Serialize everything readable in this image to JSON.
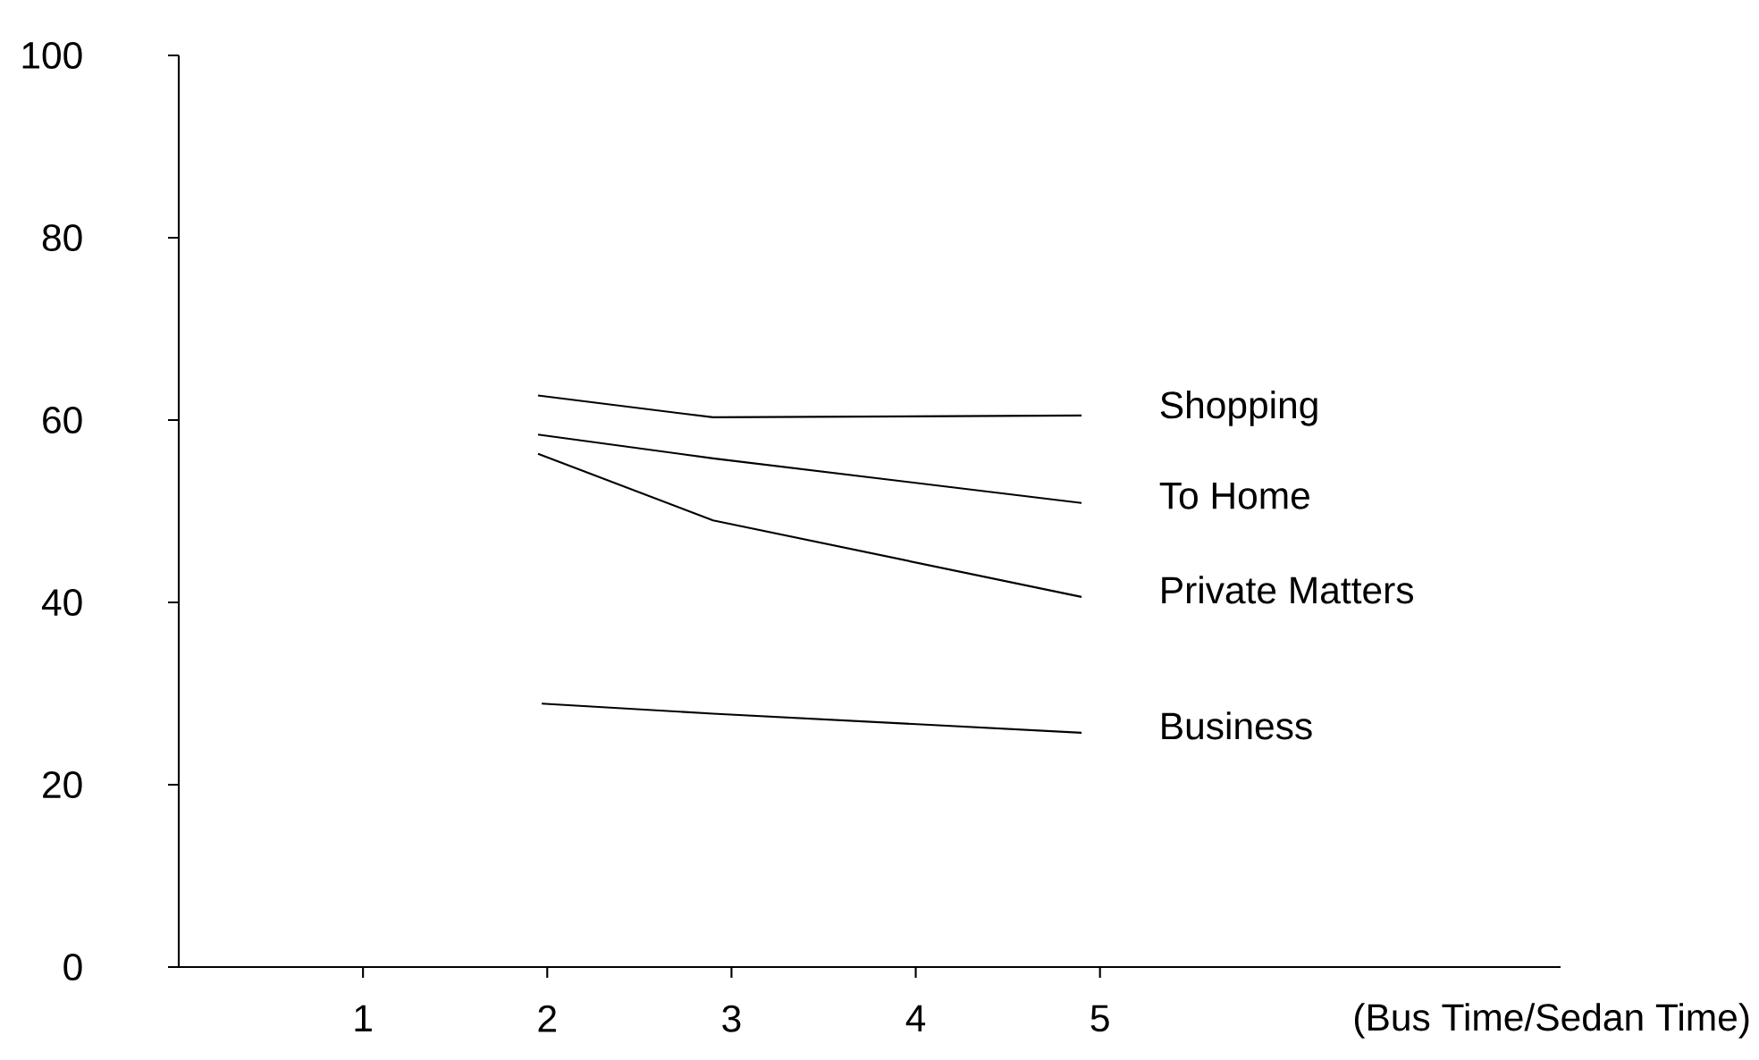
{
  "chart_data": {
    "type": "line",
    "xlabel": "(Bus Time/Sedan Time)",
    "xlim": [
      0,
      7.5
    ],
    "xticks": [
      1,
      2,
      3,
      4,
      5
    ],
    "ylim": [
      0,
      100
    ],
    "yticks": [
      0,
      20,
      40,
      60,
      80,
      100
    ],
    "grid": false,
    "legend": false,
    "marker": "none",
    "line_style": "solid",
    "series": [
      {
        "name": "Shopping",
        "color": "#000000",
        "x": [
          1.95,
          2.9,
          4.9
        ],
        "values": [
          62.7,
          60.3,
          60.5
        ]
      },
      {
        "name": "To Home",
        "color": "#000000",
        "x": [
          1.95,
          2.9,
          4.9
        ],
        "values": [
          58.4,
          55.8,
          50.9
        ]
      },
      {
        "name": "Private Matters",
        "color": "#000000",
        "x": [
          1.95,
          2.9,
          4.9
        ],
        "values": [
          56.3,
          49.0,
          40.6
        ]
      },
      {
        "name": "Business",
        "color": "#000000",
        "x": [
          1.97,
          2.9,
          4.9
        ],
        "values": [
          28.9,
          27.8,
          25.7
        ]
      }
    ]
  }
}
